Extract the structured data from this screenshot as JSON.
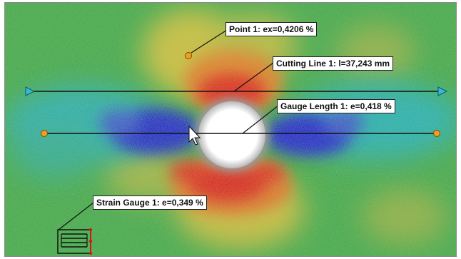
{
  "colors": {
    "background_green": "#3fae4a",
    "strain_red": "#e0301e",
    "strain_blue": "#2230c8",
    "strain_cyan": "#1ab6c8",
    "strain_yellow": "#d8c83a",
    "hole_white": "#ffffff",
    "marker_orange": "#f0a020",
    "line_arrow_cyan": "#38b8d8",
    "gauge_red": "#d01818"
  },
  "annotations": {
    "point": {
      "label": "Point 1: ex=0,4206 %"
    },
    "cutting_line": {
      "label": "Cutting Line 1: l=37,243 mm"
    },
    "gauge_length": {
      "label": "Gauge Length 1: e=0,418 %"
    },
    "strain_gauge": {
      "label": "Strain Gauge 1: e=0,349 %"
    }
  },
  "icons": {
    "cursor": "mouse-pointer-icon",
    "point_marker": "point-marker-icon",
    "strain_gauge": "strain-gauge-icon"
  }
}
